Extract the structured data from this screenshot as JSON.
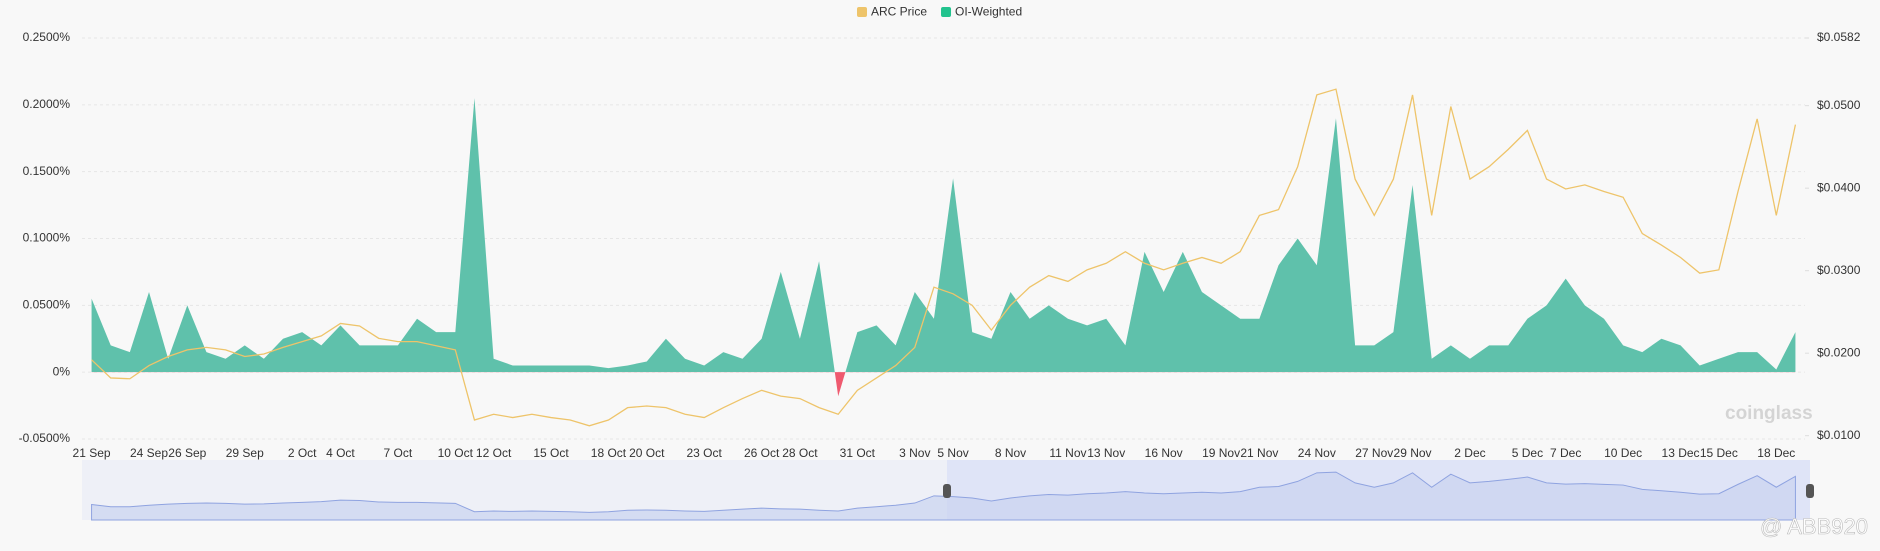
{
  "chart_data": {
    "type": "combo",
    "categories": [
      "21 Sep",
      null,
      null,
      "24 Sep",
      null,
      "26 Sep",
      null,
      null,
      "29 Sep",
      null,
      null,
      "2 Oct",
      null,
      "4 Oct",
      null,
      null,
      "7 Oct",
      null,
      null,
      "10 Oct",
      null,
      "12 Oct",
      null,
      null,
      "15 Oct",
      null,
      null,
      "18 Oct",
      null,
      "20 Oct",
      null,
      null,
      "23 Oct",
      null,
      null,
      "26 Oct",
      null,
      "28 Oct",
      null,
      null,
      "31 Oct",
      null,
      null,
      "3 Nov",
      null,
      "5 Nov",
      null,
      null,
      "8 Nov",
      null,
      null,
      "11 Nov",
      null,
      "13 Nov",
      null,
      null,
      "16 Nov",
      null,
      null,
      "19 Nov",
      null,
      "21 Nov",
      null,
      null,
      "24 Nov",
      null,
      null,
      "27 Nov",
      null,
      "29 Nov",
      null,
      null,
      "2 Dec",
      null,
      null,
      "5 Dec",
      null,
      "7 Dec",
      null,
      null,
      "10 Dec",
      null,
      null,
      "13 Dec",
      null,
      "15 Dec",
      null,
      null,
      "18 Dec",
      null
    ],
    "series": [
      {
        "name": "ARC Price",
        "type": "line",
        "axis": "y2",
        "color": "#eec46a",
        "values": [
          0.0192,
          0.017,
          0.0169,
          0.0185,
          0.0196,
          0.0204,
          0.0207,
          0.0204,
          0.0196,
          0.0199,
          0.0207,
          0.0214,
          0.0221,
          0.0236,
          0.0233,
          0.0218,
          0.0214,
          0.0214,
          0.0209,
          0.0204,
          0.0119,
          0.0126,
          0.0122,
          0.0126,
          0.0122,
          0.0119,
          0.0112,
          0.0119,
          0.0134,
          0.0136,
          0.0134,
          0.0126,
          0.0122,
          0.0134,
          0.0145,
          0.0155,
          0.0148,
          0.0145,
          0.0134,
          0.0126,
          0.0155,
          0.017,
          0.0185,
          0.0207,
          0.028,
          0.0272,
          0.0258,
          0.0228,
          0.0258,
          0.028,
          0.0294,
          0.0287,
          0.0301,
          0.0309,
          0.0323,
          0.0309,
          0.0301,
          0.0309,
          0.0316,
          0.0309,
          0.0323,
          0.0367,
          0.0374,
          0.0426,
          0.0513,
          0.052,
          0.0411,
          0.0367,
          0.0411,
          0.0513,
          0.0367,
          0.0499,
          0.0411,
          0.0426,
          0.0447,
          0.047,
          0.0411,
          0.0399,
          0.0404,
          0.0396,
          0.0389,
          0.0345,
          0.0331,
          0.0316,
          0.0297,
          0.0301,
          0.0396,
          0.0484,
          0.0367,
          0.0477
        ]
      },
      {
        "name": "OI-Weighted",
        "type": "area",
        "color": "#22c38e",
        "fill": "#5fc1ab",
        "negative_color": "#ef5a6f",
        "values": [
          0.055,
          0.02,
          0.015,
          0.06,
          0.01,
          0.05,
          0.015,
          0.01,
          0.02,
          0.01,
          0.025,
          0.03,
          0.02,
          0.035,
          0.02,
          0.02,
          0.02,
          0.04,
          0.03,
          0.03,
          0.205,
          0.01,
          0.005,
          0.005,
          0.005,
          0.005,
          0.005,
          0.003,
          0.005,
          0.008,
          0.025,
          0.01,
          0.005,
          0.015,
          0.01,
          0.025,
          0.075,
          0.025,
          0.083,
          -0.018,
          0.03,
          0.035,
          0.02,
          0.06,
          0.04,
          0.145,
          0.03,
          0.025,
          0.06,
          0.04,
          0.05,
          0.04,
          0.035,
          0.04,
          0.02,
          0.09,
          0.06,
          0.09,
          0.06,
          0.05,
          0.04,
          0.04,
          0.08,
          0.1,
          0.08,
          0.19,
          0.02,
          0.02,
          0.03,
          0.14,
          0.01,
          0.02,
          0.01,
          0.02,
          0.02,
          0.04,
          0.05,
          0.07,
          0.05,
          0.04,
          0.02,
          0.015,
          0.025,
          0.02,
          0.005,
          0.01,
          0.015,
          0.015,
          0.002,
          0.03
        ]
      }
    ],
    "ylim": [
      -0.05,
      0.25
    ],
    "yticks": [
      {
        "value": 0.25,
        "label": "0.2500%"
      },
      {
        "value": 0.2,
        "label": "0.2000%"
      },
      {
        "value": 0.15,
        "label": "0.1500%"
      },
      {
        "value": 0.1,
        "label": "0.1000%"
      },
      {
        "value": 0.05,
        "label": "0.0500%"
      },
      {
        "value": 0,
        "label": "0%"
      },
      {
        "value": -0.05,
        "label": "-0.0500%"
      }
    ],
    "y2lim": [
      0.0096,
      0.0582
    ],
    "y2ticks": [
      {
        "value": 0.0582,
        "label": "$0.0582"
      },
      {
        "value": 0.05,
        "label": "$0.0500"
      },
      {
        "value": 0.04,
        "label": "$0.0400"
      },
      {
        "value": 0.03,
        "label": "$0.0300"
      },
      {
        "value": 0.02,
        "label": "$0.0200"
      },
      {
        "value": 0.01,
        "label": "$0.0100"
      }
    ],
    "grid": true,
    "legend": "top",
    "watermarks": [
      "coinglass",
      "@ ABB920"
    ]
  }
}
